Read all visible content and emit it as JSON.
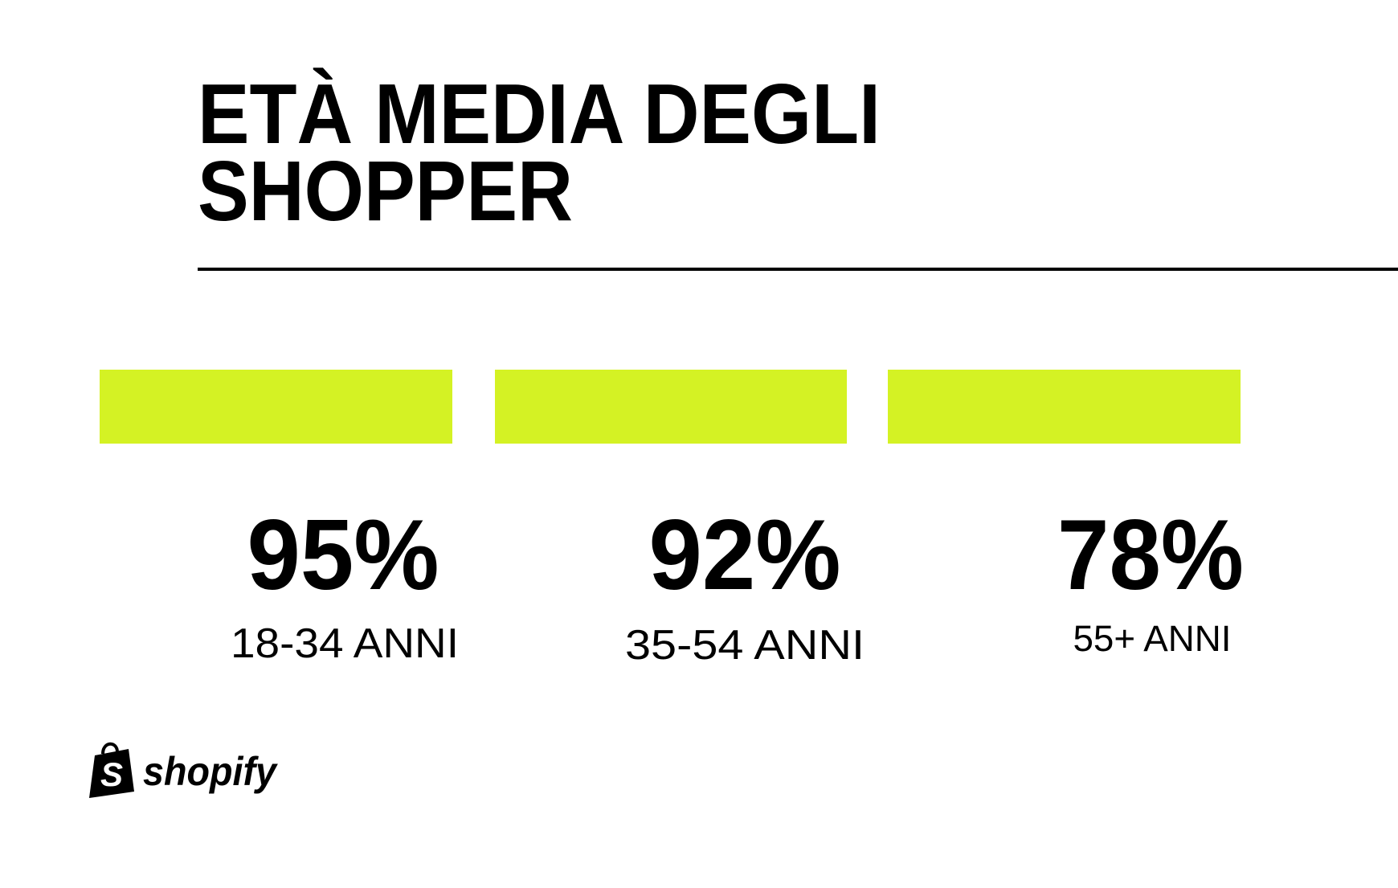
{
  "header": {
    "title_lines": [
      "ETÀ MEDIA DEGLI",
      "SHOPPER"
    ]
  },
  "stats": [
    {
      "value": "95%",
      "label": "18-34 ANNI"
    },
    {
      "value": "92%",
      "label": "35-54 ANNI"
    },
    {
      "value": "78%",
      "label": "55+ ANNI"
    }
  ],
  "brand": {
    "logo_text": "shopify"
  }
}
